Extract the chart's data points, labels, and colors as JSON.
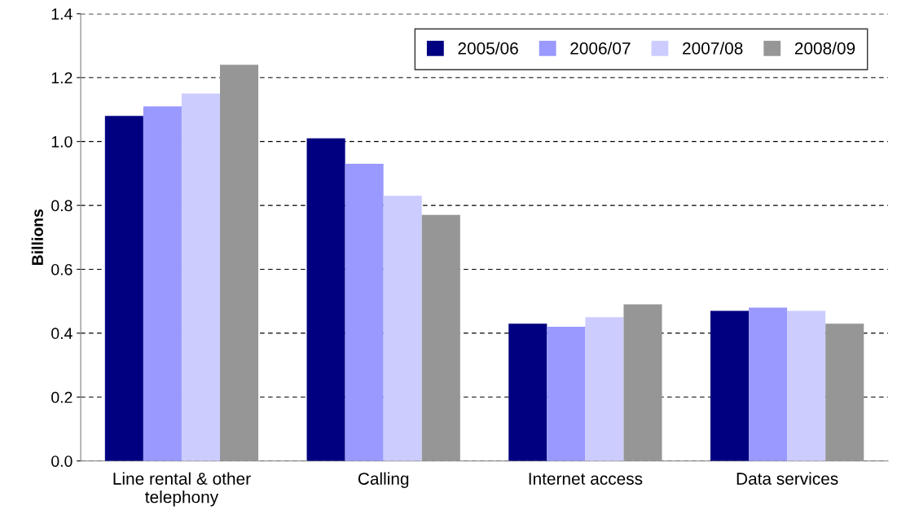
{
  "chart_data": {
    "type": "bar",
    "ylabel": "Billions",
    "categories": [
      "Line rental & other\ntelephony",
      "Calling",
      "Internet access",
      "Data services"
    ],
    "series": [
      {
        "name": "2005/06",
        "color": "#000080",
        "values": [
          1.08,
          1.01,
          0.43,
          0.47
        ]
      },
      {
        "name": "2006/07",
        "color": "#9999ff",
        "values": [
          1.11,
          0.93,
          0.42,
          0.48
        ]
      },
      {
        "name": "2007/08",
        "color": "#ccccff",
        "values": [
          1.15,
          0.83,
          0.45,
          0.47
        ]
      },
      {
        "name": "2008/09",
        "color": "#969696",
        "values": [
          1.24,
          0.77,
          0.49,
          0.43
        ]
      }
    ],
    "ylim": [
      0,
      1.4
    ],
    "yticks": [
      {
        "value": 0,
        "label": "0.0"
      },
      {
        "value": 0.2,
        "label": "0.2"
      },
      {
        "value": 0.4,
        "label": "0.4"
      },
      {
        "value": 0.6,
        "label": "0.6"
      },
      {
        "value": 0.8,
        "label": "0.8"
      },
      {
        "value": 1.0,
        "label": "1.0"
      },
      {
        "value": 1.2,
        "label": "1.2"
      },
      {
        "value": 1.4,
        "label": "1.4"
      }
    ],
    "grid": "y",
    "legend": "top right"
  }
}
